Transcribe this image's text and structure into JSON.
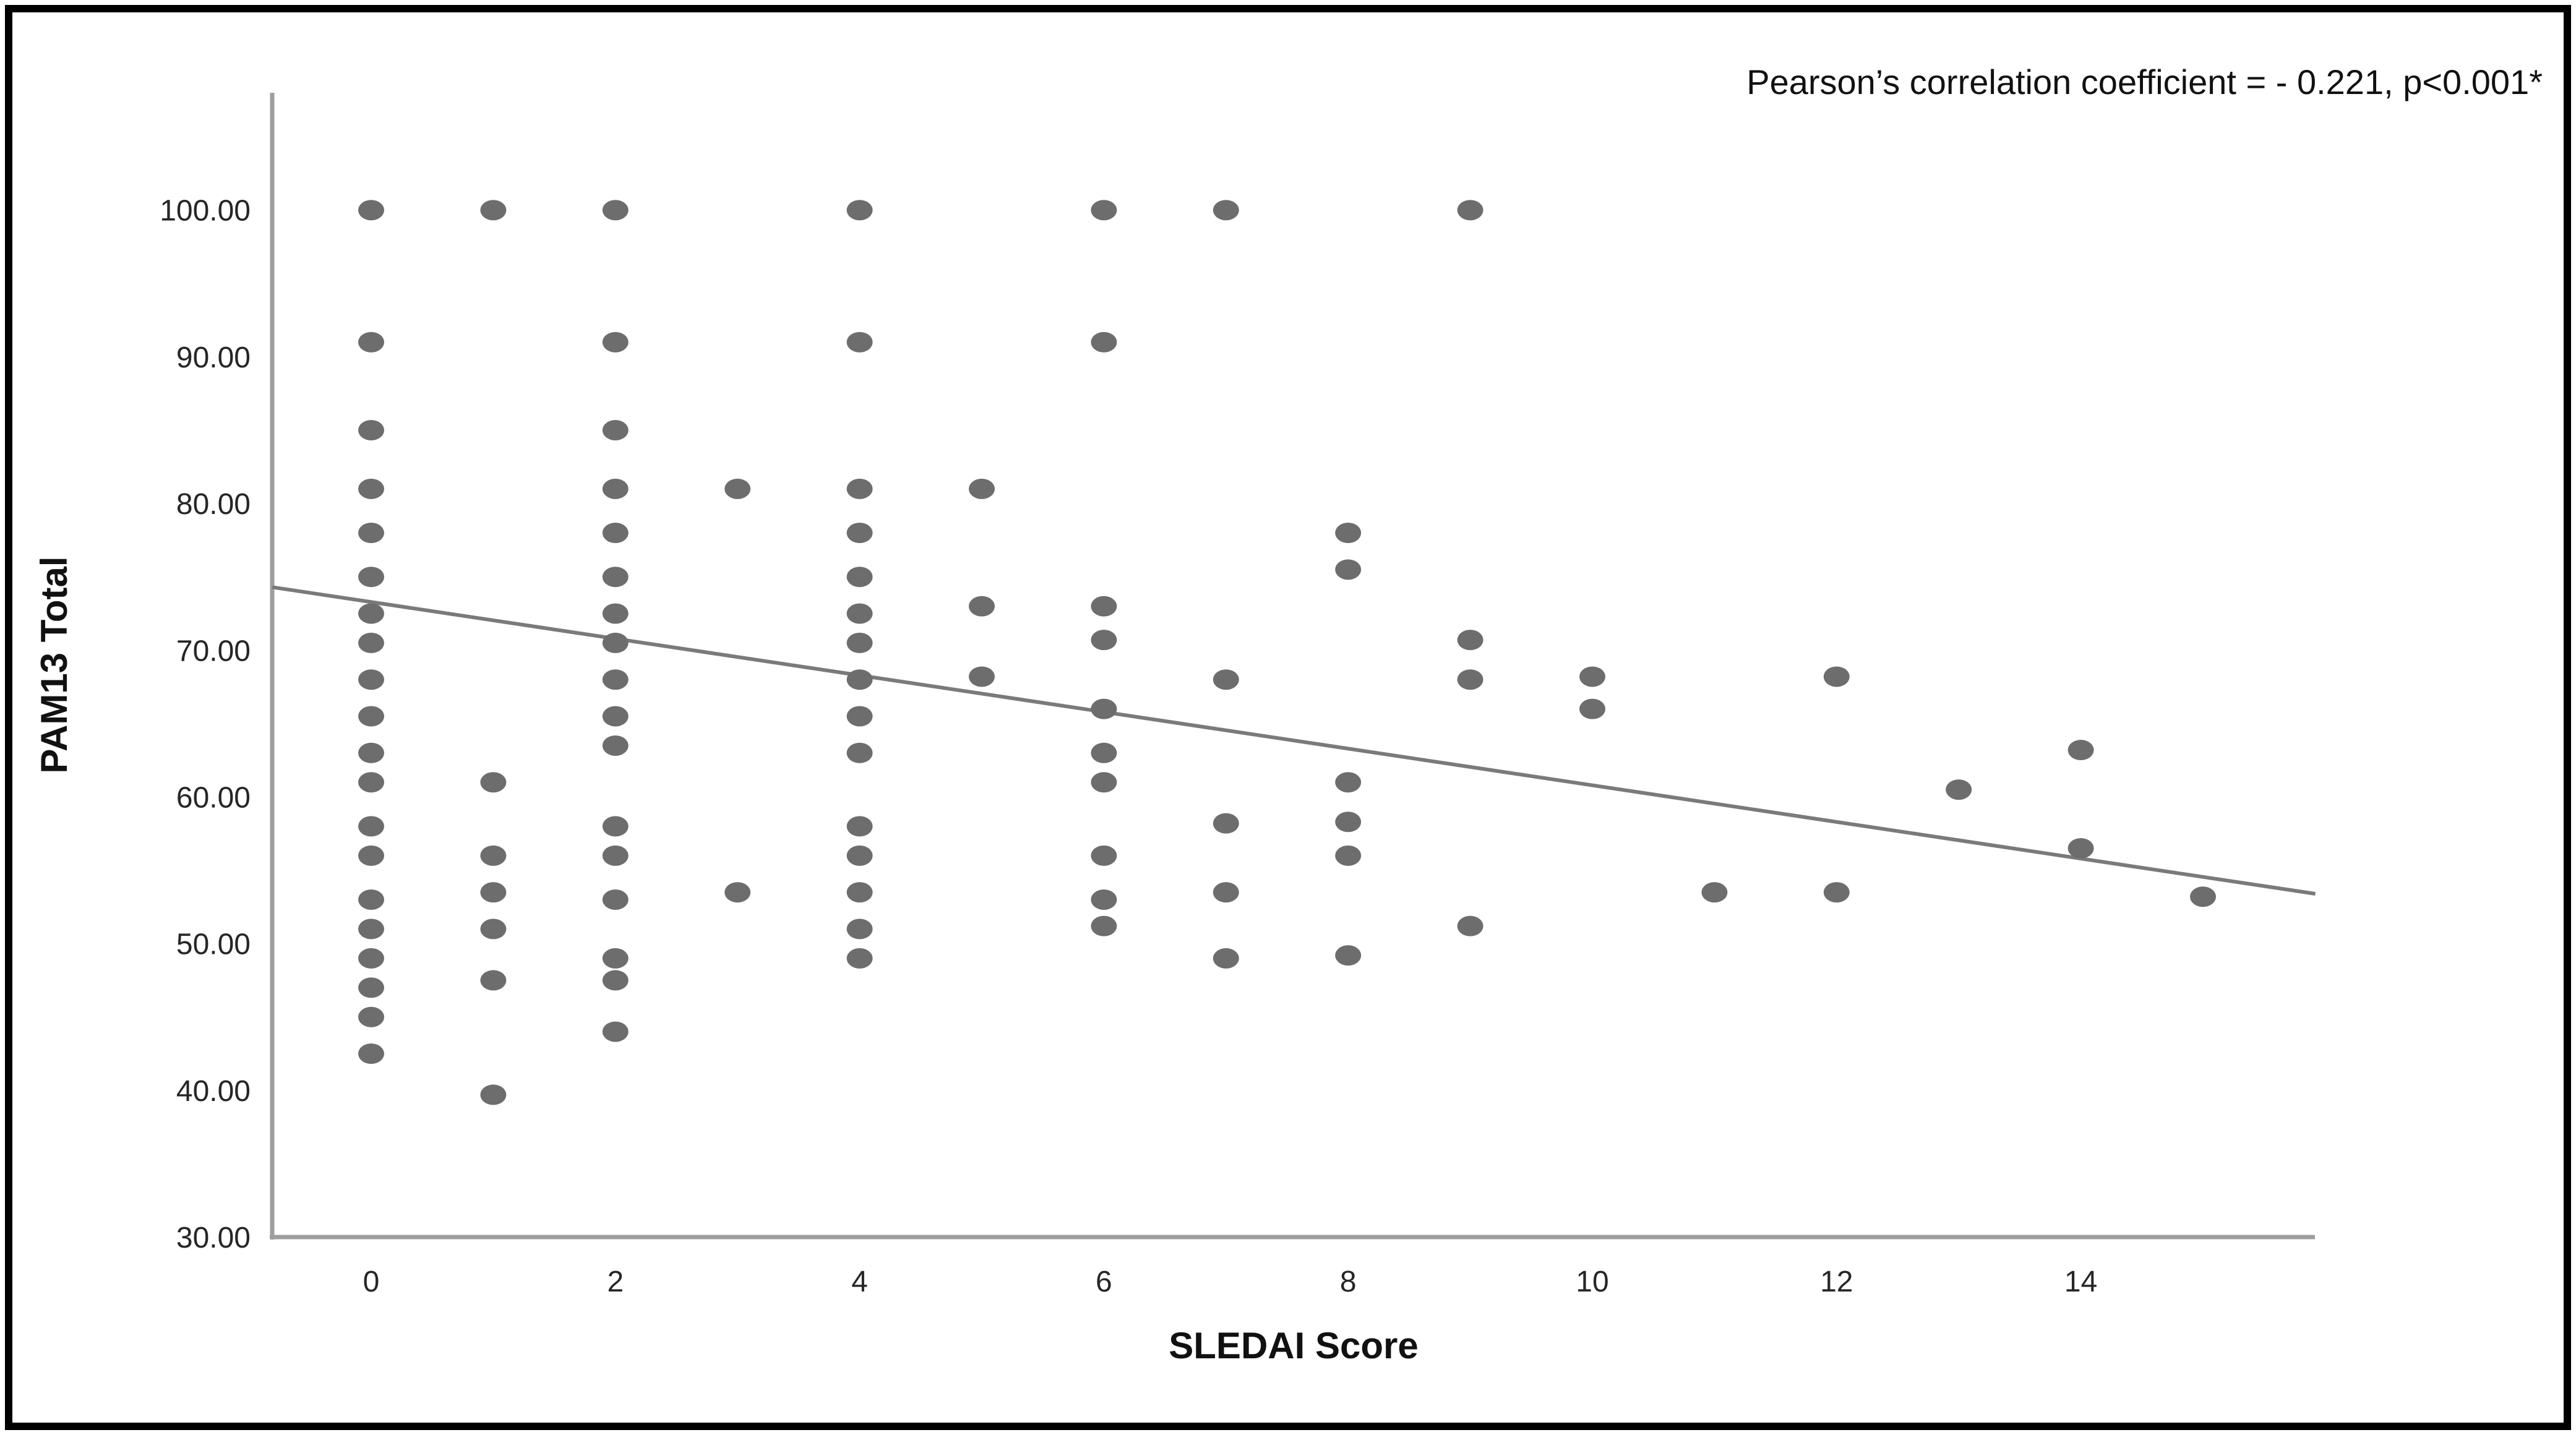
{
  "figure": {
    "border_color": "#000000",
    "background_color": "#ffffff"
  },
  "chart_data": {
    "type": "scatter",
    "title": "",
    "annotation": "Pearson’s correlation coefficient = - 0.221, p<0.001*",
    "pearson_r": "- 0.221",
    "p_value": "p<0.001*",
    "xlabel": "SLEDAI Score",
    "ylabel": "PAM13 Total",
    "xlim": [
      -0.81,
      15.92
    ],
    "ylim": [
      30,
      108
    ],
    "grid": false,
    "legend": "none",
    "x_tick_values": [
      0,
      2,
      4,
      6,
      8,
      10,
      12,
      14
    ],
    "x_tick_labels": [
      "0",
      "2",
      "4",
      "6",
      "8",
      "10",
      "12",
      "14"
    ],
    "y_tick_values": [
      30,
      40,
      50,
      60,
      70,
      80,
      90,
      100
    ],
    "y_tick_labels": [
      "30.00",
      "40.00",
      "50.00",
      "60.00",
      "70.00",
      "80.00",
      "90.00",
      "100.00"
    ],
    "point_color": "#6d6d6d",
    "line_color": "#7a7a7a",
    "axis_color": "#9e9e9e",
    "regression_line": {
      "x1": -0.81,
      "y1": 74.3,
      "x2": 15.92,
      "y2": 53.4
    },
    "points": [
      [
        0,
        100
      ],
      [
        0,
        91
      ],
      [
        0,
        85
      ],
      [
        0,
        81
      ],
      [
        0,
        78
      ],
      [
        0,
        75
      ],
      [
        0,
        72.5
      ],
      [
        0,
        70.5
      ],
      [
        0,
        68
      ],
      [
        0,
        65.5
      ],
      [
        0,
        63
      ],
      [
        0,
        61
      ],
      [
        0,
        58
      ],
      [
        0,
        56
      ],
      [
        0,
        53
      ],
      [
        0,
        51
      ],
      [
        0,
        49
      ],
      [
        0,
        47
      ],
      [
        0,
        45
      ],
      [
        0,
        42.5
      ],
      [
        1,
        100
      ],
      [
        1,
        61
      ],
      [
        1,
        56
      ],
      [
        1,
        53.5
      ],
      [
        1,
        51
      ],
      [
        1,
        47.5
      ],
      [
        1,
        39.7
      ],
      [
        2,
        100
      ],
      [
        2,
        91
      ],
      [
        2,
        85
      ],
      [
        2,
        81
      ],
      [
        2,
        78
      ],
      [
        2,
        75
      ],
      [
        2,
        72.5
      ],
      [
        2,
        70.5
      ],
      [
        2,
        68
      ],
      [
        2,
        65.5
      ],
      [
        2,
        63.5
      ],
      [
        2,
        58
      ],
      [
        2,
        56
      ],
      [
        2,
        53
      ],
      [
        2,
        49
      ],
      [
        2,
        47.5
      ],
      [
        2,
        44
      ],
      [
        3,
        81
      ],
      [
        3,
        53.5
      ],
      [
        4,
        100
      ],
      [
        4,
        91
      ],
      [
        4,
        81
      ],
      [
        4,
        78
      ],
      [
        4,
        75
      ],
      [
        4,
        72.5
      ],
      [
        4,
        70.5
      ],
      [
        4,
        68
      ],
      [
        4,
        65.5
      ],
      [
        4,
        63
      ],
      [
        4,
        58
      ],
      [
        4,
        56
      ],
      [
        4,
        53.5
      ],
      [
        4,
        51
      ],
      [
        4,
        49
      ],
      [
        5,
        81
      ],
      [
        5,
        73
      ],
      [
        5,
        68.2
      ],
      [
        6,
        100
      ],
      [
        6,
        91
      ],
      [
        6,
        73
      ],
      [
        6,
        70.7
      ],
      [
        6,
        66
      ],
      [
        6,
        63
      ],
      [
        6,
        61
      ],
      [
        6,
        56
      ],
      [
        6,
        53
      ],
      [
        6,
        51.2
      ],
      [
        7,
        100
      ],
      [
        7,
        68
      ],
      [
        7,
        58.2
      ],
      [
        7,
        53.5
      ],
      [
        7,
        49
      ],
      [
        8,
        78
      ],
      [
        8,
        75.5
      ],
      [
        8,
        61
      ],
      [
        8,
        58.3
      ],
      [
        8,
        56
      ],
      [
        8,
        49.2
      ],
      [
        9,
        100
      ],
      [
        9,
        70.7
      ],
      [
        9,
        68
      ],
      [
        9,
        51.2
      ],
      [
        10,
        68.2
      ],
      [
        10,
        66
      ],
      [
        11,
        53.5
      ],
      [
        12,
        68.2
      ],
      [
        12,
        53.5
      ],
      [
        13,
        60.5
      ],
      [
        14,
        63.2
      ],
      [
        14,
        56.5
      ],
      [
        15,
        53.2
      ]
    ]
  }
}
